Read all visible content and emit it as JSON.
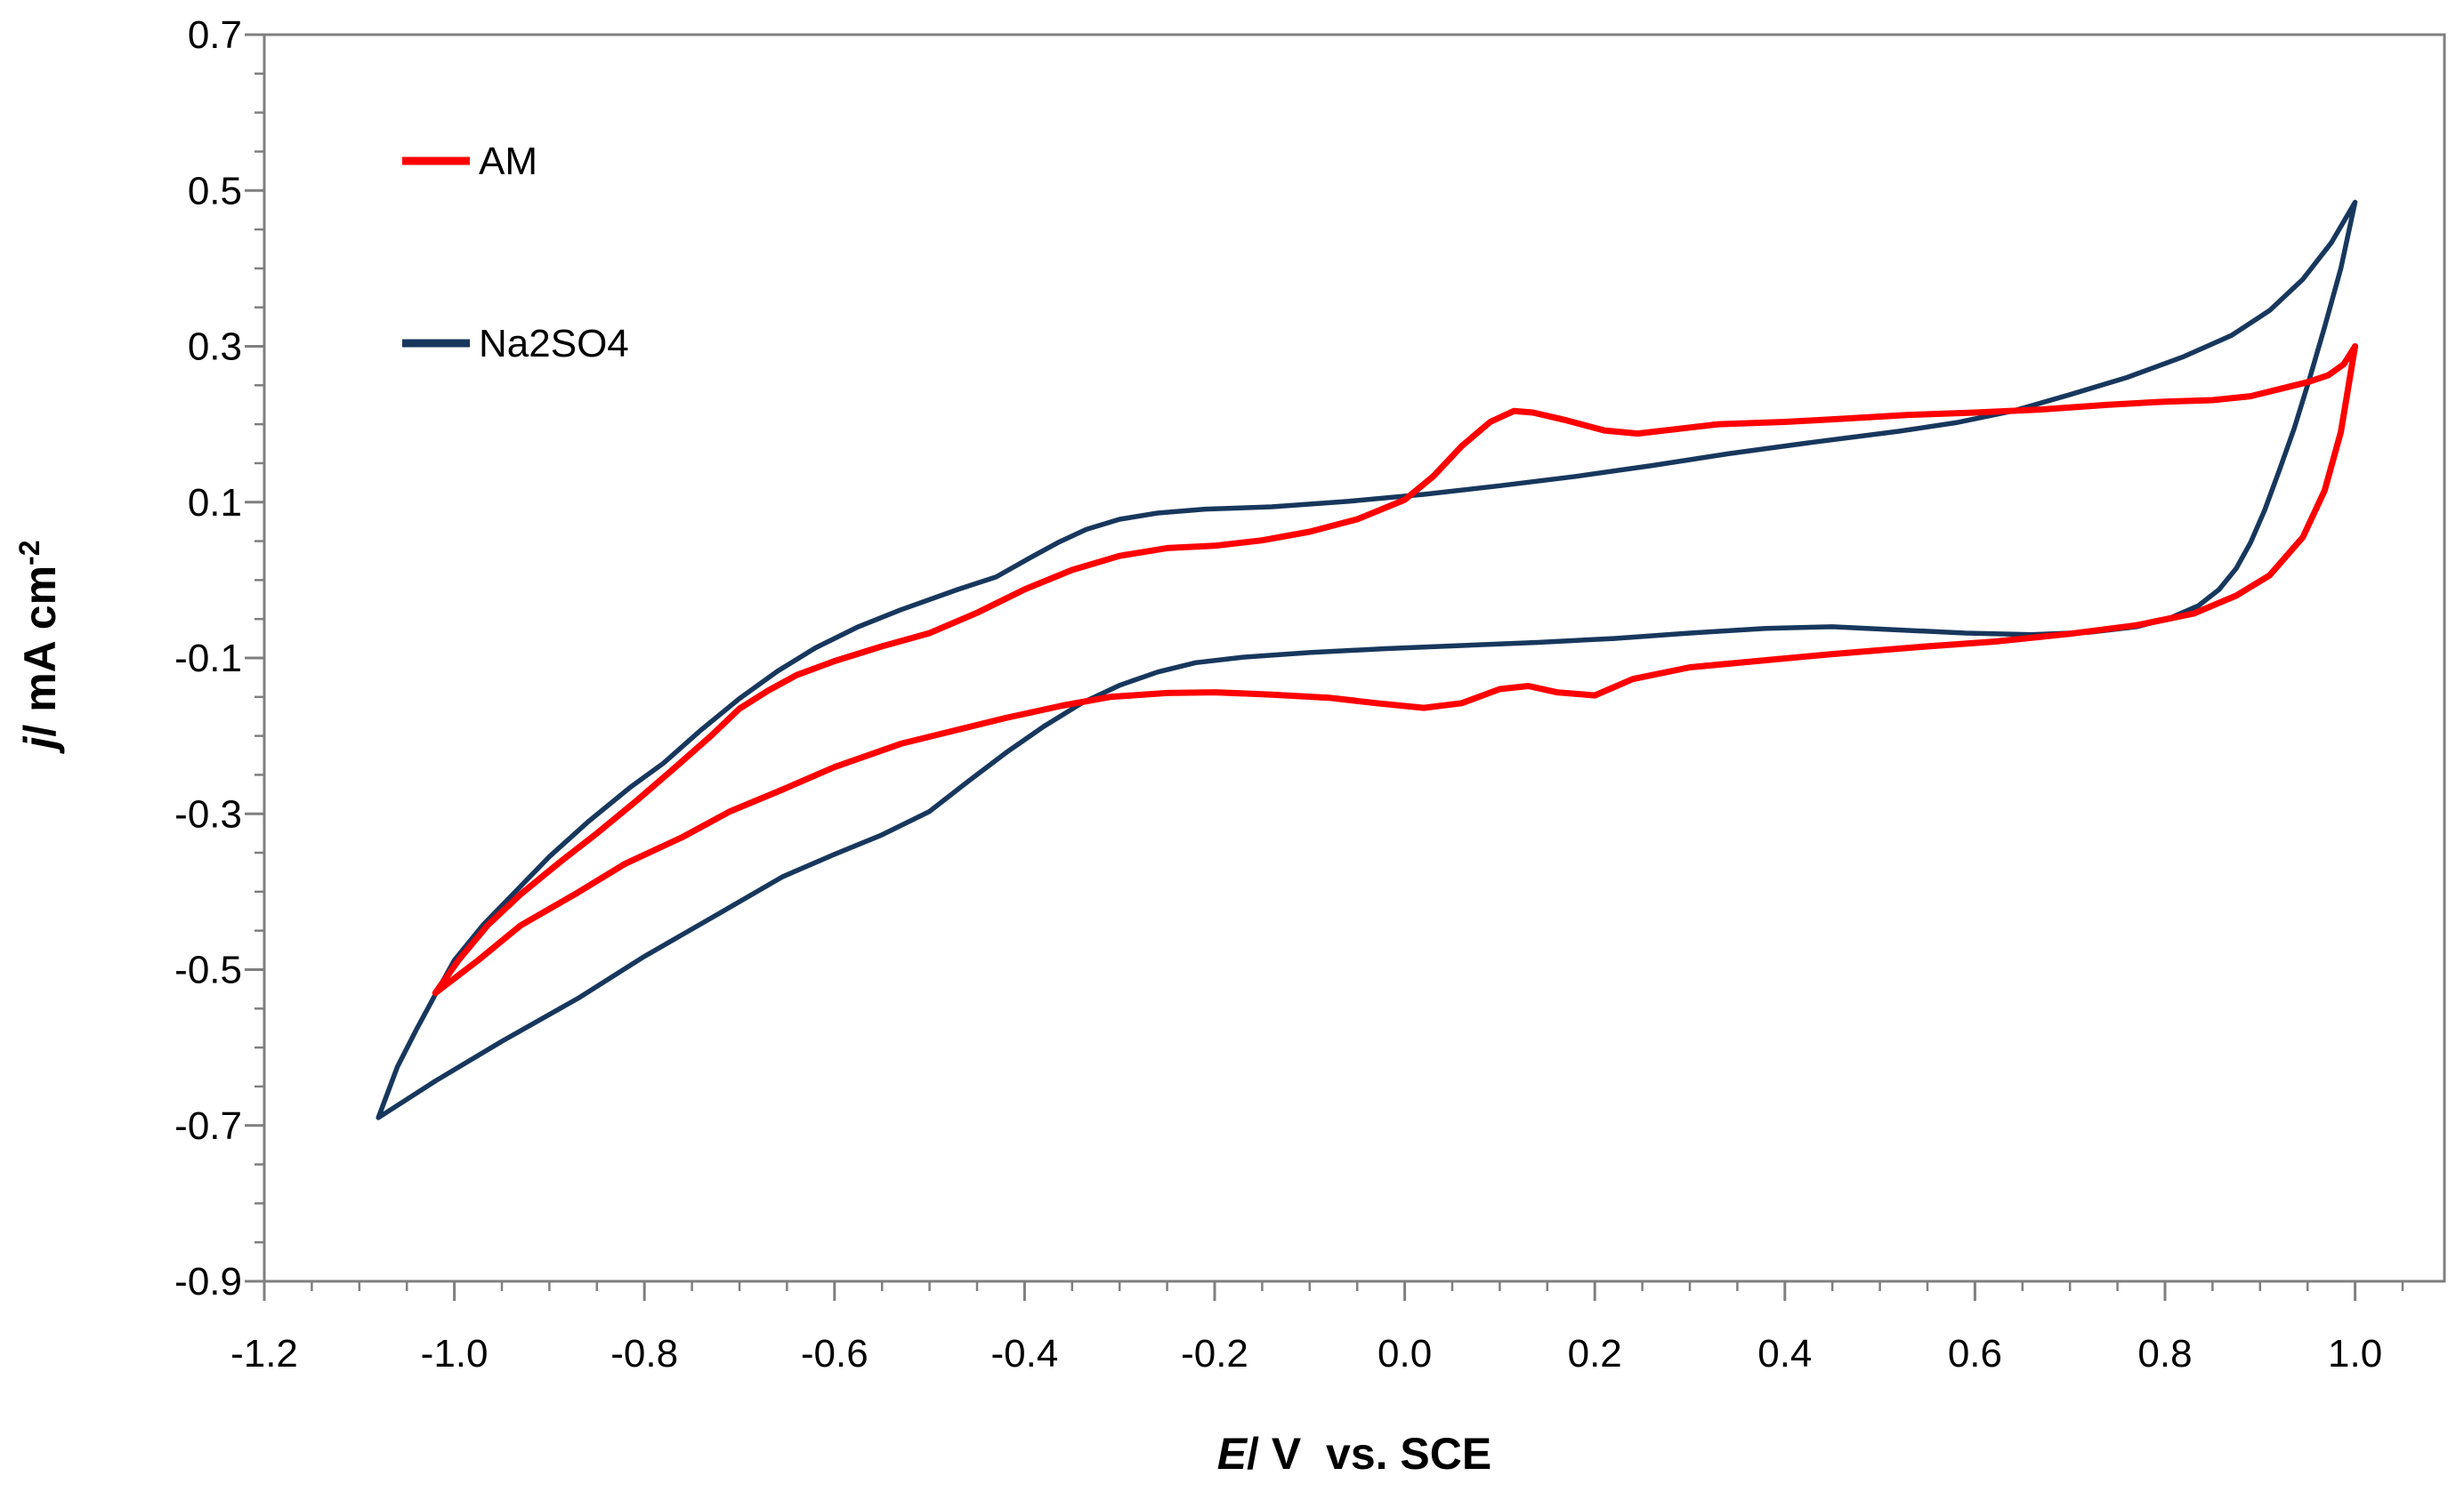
{
  "chart_data": {
    "type": "line",
    "title": "",
    "xlabel": {
      "em": "E",
      "rest": "/ V  vs. SCE"
    },
    "ylabel": {
      "em": "j",
      "rest": "/ mA cm",
      "sup": "-2"
    },
    "xlim": [
      -1.2,
      1.094
    ],
    "ylim": [
      -0.9,
      0.7
    ],
    "x_ticks": {
      "values": [
        -1.2,
        -1.0,
        -0.8,
        -0.6,
        -0.4,
        -0.2,
        0.0,
        0.2,
        0.4,
        0.6,
        0.8,
        1.0
      ],
      "labels": [
        "-1.2",
        "-1.0",
        "-0.8",
        "-0.6",
        "-0.4",
        "-0.2",
        "0.0",
        "0.2",
        "0.4",
        "0.6",
        "0.8",
        "1.0"
      ]
    },
    "y_ticks": {
      "values": [
        0.7,
        0.5,
        0.3,
        0.1,
        -0.1,
        -0.3,
        -0.5,
        -0.7,
        -0.9
      ],
      "labels": [
        "0.7",
        "0.5",
        "0.3",
        "0.1",
        "-0.1",
        "-0.3",
        "-0.5",
        "-0.7",
        "-0.9"
      ]
    },
    "minor_tick_step": 0.05,
    "grid": "off",
    "legend_position": "top-left-inside",
    "axis_color": "#7f7f7f",
    "text_color": "#000000",
    "legend": [
      {
        "name": "AM",
        "color": "#ff0000"
      },
      {
        "name": "Na2SO4",
        "color": "#17375d"
      }
    ],
    "series": [
      {
        "name": "AM",
        "color": "#ff0000",
        "width": 7,
        "closed": true,
        "points": [
          [
            -1.02,
            -0.53
          ],
          [
            -0.975,
            -0.488
          ],
          [
            -0.93,
            -0.443
          ],
          [
            -0.87,
            -0.401
          ],
          [
            -0.82,
            -0.364
          ],
          [
            -0.76,
            -0.33
          ],
          [
            -0.71,
            -0.297
          ],
          [
            -0.655,
            -0.269
          ],
          [
            -0.6,
            -0.24
          ],
          [
            -0.53,
            -0.21
          ],
          [
            -0.47,
            -0.192
          ],
          [
            -0.42,
            -0.177
          ],
          [
            -0.36,
            -0.161
          ],
          [
            -0.31,
            -0.15
          ],
          [
            -0.25,
            -0.145
          ],
          [
            -0.2,
            -0.144
          ],
          [
            -0.14,
            -0.147
          ],
          [
            -0.08,
            -0.151
          ],
          [
            -0.03,
            -0.158
          ],
          [
            0.02,
            -0.164
          ],
          [
            0.06,
            -0.158
          ],
          [
            0.1,
            -0.14
          ],
          [
            0.13,
            -0.136
          ],
          [
            0.16,
            -0.144
          ],
          [
            0.2,
            -0.148
          ],
          [
            0.24,
            -0.127
          ],
          [
            0.3,
            -0.112
          ],
          [
            0.37,
            -0.104
          ],
          [
            0.45,
            -0.095
          ],
          [
            0.54,
            -0.086
          ],
          [
            0.62,
            -0.079
          ],
          [
            0.7,
            -0.069
          ],
          [
            0.77,
            -0.058
          ],
          [
            0.83,
            -0.043
          ],
          [
            0.875,
            -0.02
          ],
          [
            0.91,
            0.006
          ],
          [
            0.945,
            0.055
          ],
          [
            0.968,
            0.115
          ],
          [
            0.985,
            0.19
          ],
          [
            1.0,
            0.3
          ],
          [
            0.988,
            0.277
          ],
          [
            0.972,
            0.263
          ],
          [
            0.95,
            0.254
          ],
          [
            0.92,
            0.245
          ],
          [
            0.89,
            0.236
          ],
          [
            0.85,
            0.231
          ],
          [
            0.8,
            0.229
          ],
          [
            0.74,
            0.225
          ],
          [
            0.67,
            0.219
          ],
          [
            0.6,
            0.215
          ],
          [
            0.53,
            0.212
          ],
          [
            0.46,
            0.207
          ],
          [
            0.4,
            0.203
          ],
          [
            0.33,
            0.2
          ],
          [
            0.28,
            0.193
          ],
          [
            0.245,
            0.188
          ],
          [
            0.21,
            0.192
          ],
          [
            0.17,
            0.205
          ],
          [
            0.135,
            0.215
          ],
          [
            0.115,
            0.217
          ],
          [
            0.09,
            0.203
          ],
          [
            0.06,
            0.172
          ],
          [
            0.03,
            0.133
          ],
          [
            0.0,
            0.103
          ],
          [
            -0.05,
            0.078
          ],
          [
            -0.1,
            0.062
          ],
          [
            -0.15,
            0.051
          ],
          [
            -0.2,
            0.044
          ],
          [
            -0.25,
            0.041
          ],
          [
            -0.3,
            0.031
          ],
          [
            -0.35,
            0.013
          ],
          [
            -0.4,
            -0.012
          ],
          [
            -0.45,
            -0.042
          ],
          [
            -0.5,
            -0.068
          ],
          [
            -0.55,
            -0.085
          ],
          [
            -0.6,
            -0.104
          ],
          [
            -0.64,
            -0.122
          ],
          [
            -0.67,
            -0.142
          ],
          [
            -0.7,
            -0.165
          ],
          [
            -0.73,
            -0.2
          ],
          [
            -0.77,
            -0.243
          ],
          [
            -0.81,
            -0.285
          ],
          [
            -0.85,
            -0.325
          ],
          [
            -0.89,
            -0.363
          ],
          [
            -0.93,
            -0.403
          ],
          [
            -0.965,
            -0.443
          ],
          [
            -0.995,
            -0.487
          ],
          [
            -1.02,
            -0.53
          ]
        ]
      },
      {
        "name": "Na2SO4",
        "color": "#17375d",
        "width": 5.5,
        "closed": true,
        "points": [
          [
            -1.08,
            -0.69
          ],
          [
            -1.06,
            -0.625
          ],
          [
            -1.04,
            -0.577
          ],
          [
            -1.02,
            -0.532
          ],
          [
            -1.0,
            -0.488
          ],
          [
            -0.97,
            -0.443
          ],
          [
            -0.935,
            -0.399
          ],
          [
            -0.9,
            -0.355
          ],
          [
            -0.86,
            -0.311
          ],
          [
            -0.815,
            -0.266
          ],
          [
            -0.78,
            -0.235
          ],
          [
            -0.74,
            -0.192
          ],
          [
            -0.7,
            -0.152
          ],
          [
            -0.66,
            -0.117
          ],
          [
            -0.62,
            -0.087
          ],
          [
            -0.575,
            -0.06
          ],
          [
            -0.53,
            -0.038
          ],
          [
            -0.47,
            -0.012
          ],
          [
            -0.43,
            0.004
          ],
          [
            -0.395,
            0.028
          ],
          [
            -0.365,
            0.048
          ],
          [
            -0.335,
            0.065
          ],
          [
            -0.3,
            0.078
          ],
          [
            -0.26,
            0.086
          ],
          [
            -0.21,
            0.091
          ],
          [
            -0.14,
            0.094
          ],
          [
            -0.06,
            0.101
          ],
          [
            0.02,
            0.11
          ],
          [
            0.1,
            0.121
          ],
          [
            0.18,
            0.133
          ],
          [
            0.26,
            0.147
          ],
          [
            0.34,
            0.162
          ],
          [
            0.43,
            0.177
          ],
          [
            0.52,
            0.191
          ],
          [
            0.58,
            0.202
          ],
          [
            0.64,
            0.217
          ],
          [
            0.7,
            0.238
          ],
          [
            0.76,
            0.26
          ],
          [
            0.82,
            0.287
          ],
          [
            0.87,
            0.314
          ],
          [
            0.91,
            0.346
          ],
          [
            0.945,
            0.386
          ],
          [
            0.975,
            0.433
          ],
          [
            1.0,
            0.485
          ],
          [
            0.985,
            0.4
          ],
          [
            0.968,
            0.325
          ],
          [
            0.952,
            0.258
          ],
          [
            0.936,
            0.195
          ],
          [
            0.92,
            0.14
          ],
          [
            0.905,
            0.09
          ],
          [
            0.89,
            0.048
          ],
          [
            0.875,
            0.015
          ],
          [
            0.857,
            -0.012
          ],
          [
            0.835,
            -0.033
          ],
          [
            0.805,
            -0.049
          ],
          [
            0.77,
            -0.06
          ],
          [
            0.72,
            -0.067
          ],
          [
            0.66,
            -0.07
          ],
          [
            0.59,
            -0.068
          ],
          [
            0.52,
            -0.064
          ],
          [
            0.45,
            -0.06
          ],
          [
            0.38,
            -0.062
          ],
          [
            0.3,
            -0.068
          ],
          [
            0.22,
            -0.075
          ],
          [
            0.14,
            -0.08
          ],
          [
            0.06,
            -0.084
          ],
          [
            -0.02,
            -0.088
          ],
          [
            -0.1,
            -0.093
          ],
          [
            -0.17,
            -0.099
          ],
          [
            -0.22,
            -0.106
          ],
          [
            -0.26,
            -0.118
          ],
          [
            -0.3,
            -0.135
          ],
          [
            -0.34,
            -0.158
          ],
          [
            -0.38,
            -0.188
          ],
          [
            -0.42,
            -0.222
          ],
          [
            -0.46,
            -0.259
          ],
          [
            -0.5,
            -0.297
          ],
          [
            -0.55,
            -0.327
          ],
          [
            -0.6,
            -0.352
          ],
          [
            -0.655,
            -0.381
          ],
          [
            -0.72,
            -0.427
          ],
          [
            -0.8,
            -0.483
          ],
          [
            -0.87,
            -0.537
          ],
          [
            -0.95,
            -0.592
          ],
          [
            -1.02,
            -0.643
          ],
          [
            -1.08,
            -0.69
          ]
        ]
      }
    ]
  }
}
